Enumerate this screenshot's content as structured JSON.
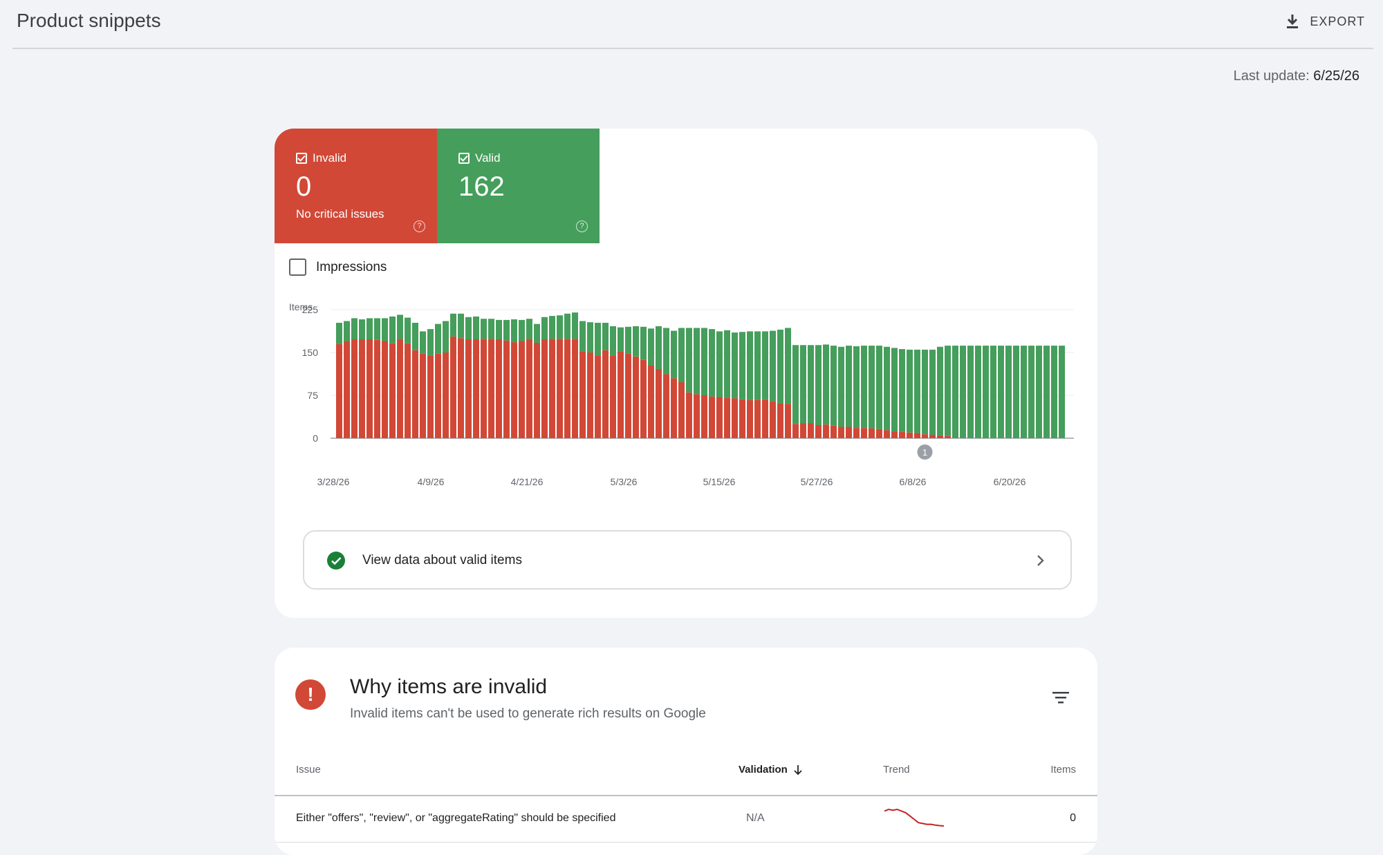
{
  "header": {
    "title": "Product snippets",
    "export_label": "EXPORT"
  },
  "last_update": {
    "label": "Last update:",
    "value": "6/25/26"
  },
  "summary": {
    "invalid": {
      "label": "Invalid",
      "value": "0",
      "sub": "No critical issues",
      "color": "#d14836"
    },
    "valid": {
      "label": "Valid",
      "value": "162",
      "color": "#459e5b"
    }
  },
  "impressions_label": "Impressions",
  "chart_data": {
    "type": "bar",
    "stacked": true,
    "ylabel": "Items",
    "yticks": [
      0,
      75,
      150,
      225
    ],
    "ylim": [
      0,
      225
    ],
    "xticks": [
      "3/28/26",
      "4/9/26",
      "4/21/26",
      "5/3/26",
      "5/15/26",
      "5/27/26",
      "6/8/26",
      "6/20/26"
    ],
    "annotation": {
      "label": "1",
      "index": 77
    },
    "series": [
      {
        "name": "Invalid",
        "color": "#d14836",
        "values": [
          165,
          170,
          173,
          173,
          173,
          172,
          170,
          166,
          174,
          166,
          154,
          148,
          145,
          148,
          150,
          178,
          175,
          173,
          173,
          174,
          174,
          173,
          171,
          168,
          170,
          174,
          167,
          173,
          174,
          174,
          174,
          174,
          152,
          150,
          145,
          154,
          145,
          152,
          148,
          143,
          137,
          127,
          121,
          112,
          105,
          98,
          80,
          77,
          75,
          73,
          72,
          71,
          70,
          68,
          67,
          67,
          68,
          65,
          61,
          60,
          25,
          26,
          26,
          23,
          24,
          22,
          20,
          20,
          18,
          18,
          17,
          16,
          14,
          12,
          11,
          10,
          9,
          7,
          6,
          5,
          4,
          0,
          0,
          0,
          0,
          0,
          0,
          0,
          0,
          0,
          0,
          0,
          0,
          0,
          0,
          0
        ]
      },
      {
        "name": "Valid",
        "color": "#459e5b",
        "values": [
          37,
          35,
          37,
          35,
          37,
          38,
          40,
          47,
          42,
          45,
          48,
          39,
          46,
          52,
          55,
          40,
          43,
          39,
          40,
          35,
          35,
          34,
          36,
          40,
          37,
          35,
          33,
          39,
          40,
          41,
          44,
          46,
          53,
          53,
          57,
          48,
          51,
          42,
          47,
          53,
          58,
          65,
          75,
          81,
          83,
          95,
          113,
          116,
          118,
          118,
          115,
          118,
          115,
          118,
          120,
          120,
          119,
          123,
          129,
          133,
          138,
          137,
          137,
          140,
          140,
          140,
          140,
          142,
          143,
          144,
          145,
          146,
          146,
          146,
          145,
          145,
          146,
          148,
          149,
          155,
          158,
          162,
          162,
          162,
          162,
          162,
          162,
          162,
          162,
          162,
          162,
          162,
          162,
          162,
          162,
          162
        ]
      }
    ]
  },
  "view_valid_label": "View data about valid items",
  "issues_section": {
    "title": "Why items are invalid",
    "subtitle": "Invalid items can't be used to generate rich results on Google",
    "columns": {
      "issue": "Issue",
      "validation": "Validation",
      "trend": "Trend",
      "items": "Items"
    },
    "rows": [
      {
        "issue": "Either \"offers\", \"review\", or \"aggregateRating\" should be specified",
        "validation": "N/A",
        "trend": [
          9,
          10,
          9.5,
          10,
          9,
          8,
          6,
          4,
          2,
          1.5,
          1,
          1,
          0.5,
          0.2,
          0
        ],
        "items": "0"
      }
    ]
  }
}
